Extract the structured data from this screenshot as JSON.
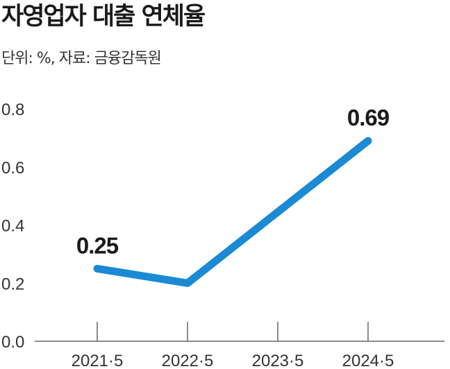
{
  "header": {
    "title": "자영업자 대출 연체율",
    "subtitle": "단위: %, 자료: 금융감독원"
  },
  "colors": {
    "line": "#1a8ad4",
    "axis": "#666666",
    "text": "#1a1a1a"
  },
  "chart_data": {
    "type": "line",
    "title": "자영업자 대출 연체율",
    "subtitle": "단위: %, 자료: 금융감독원",
    "categories": [
      "2021·5",
      "2022·5",
      "2023·5",
      "2024·5"
    ],
    "x_tick_labels": [
      "2021·5",
      "2022·5",
      "2023·5",
      "2024·5"
    ],
    "y_tick_labels": [
      "0.0",
      "0.2",
      "0.4",
      "0.6",
      "0.8"
    ],
    "ylim": [
      0,
      0.8
    ],
    "grid": false,
    "series": [
      {
        "x": [
          "2021·5",
          "2022·5",
          "2024·5"
        ],
        "values": [
          0.25,
          0.2,
          0.69
        ],
        "data_labels": [
          "0.25",
          "",
          "0.69"
        ]
      }
    ]
  }
}
